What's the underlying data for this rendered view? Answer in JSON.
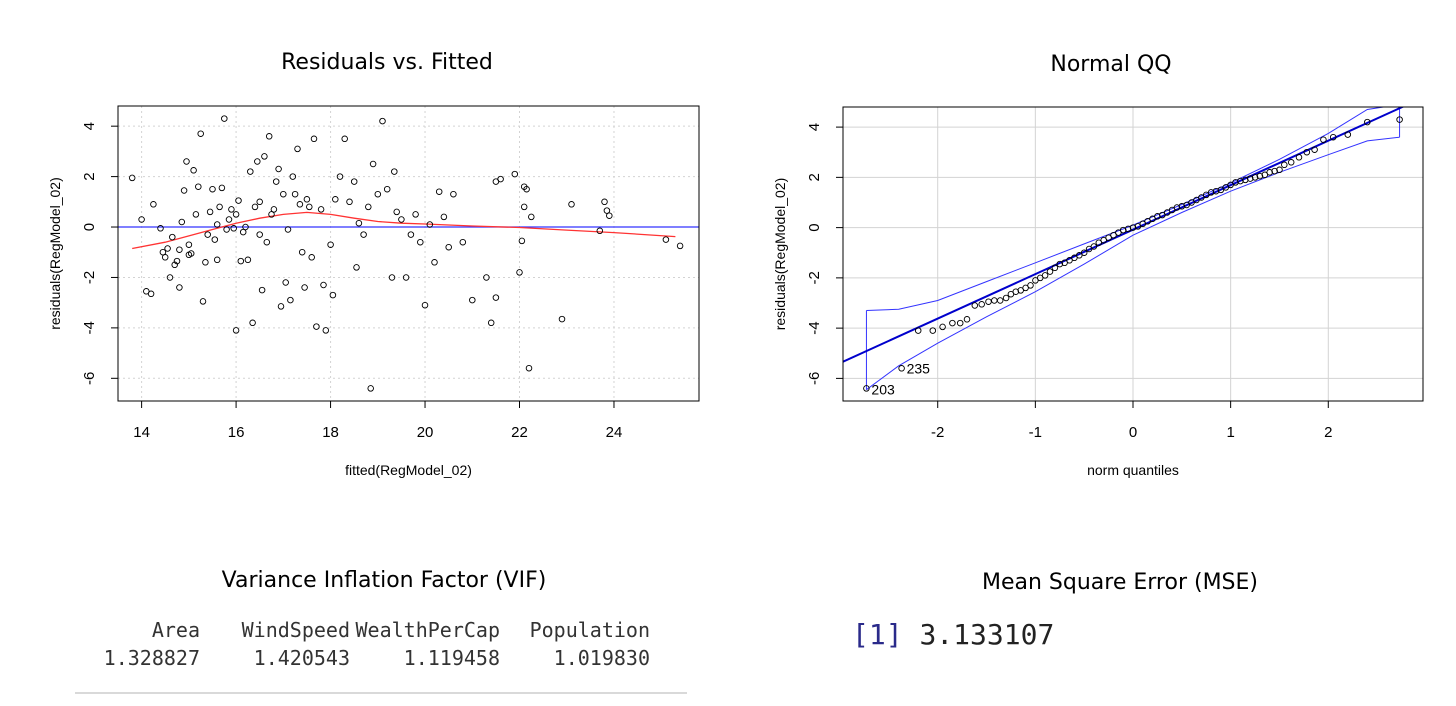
{
  "titles": {
    "residuals_fitted": "Residuals vs. Fitted",
    "normal_qq": "Normal QQ",
    "vif": "Variance Inflation Factor (VIF)",
    "mse": "Mean Square Error (MSE)"
  },
  "chart_data": [
    {
      "type": "scatter",
      "title": "Residuals vs. Fitted",
      "xlabel": "fitted(RegModel_02)",
      "ylabel": "residuals(RegModel_02)",
      "xlim": [
        13.5,
        25.8
      ],
      "ylim": [
        -6.9,
        4.8
      ],
      "xticks": [
        14,
        16,
        18,
        20,
        22,
        24
      ],
      "yticks": [
        -6,
        -4,
        -2,
        0,
        2,
        4
      ],
      "grid": true,
      "reference_line": {
        "y": 0,
        "color": "#3333ff"
      },
      "smooth": {
        "color": "#ff3333",
        "points": [
          [
            13.8,
            -0.85
          ],
          [
            14.5,
            -0.6
          ],
          [
            15.0,
            -0.35
          ],
          [
            15.5,
            -0.1
          ],
          [
            16.0,
            0.15
          ],
          [
            16.5,
            0.35
          ],
          [
            17.0,
            0.5
          ],
          [
            17.5,
            0.58
          ],
          [
            18.0,
            0.5
          ],
          [
            18.5,
            0.35
          ],
          [
            19.0,
            0.22
          ],
          [
            19.5,
            0.15
          ],
          [
            20.0,
            0.12
          ],
          [
            20.5,
            0.08
          ],
          [
            21.0,
            0.04
          ],
          [
            22.0,
            -0.02
          ],
          [
            23.0,
            -0.12
          ],
          [
            24.0,
            -0.22
          ],
          [
            25.3,
            -0.38
          ]
        ]
      },
      "points": [
        [
          13.8,
          1.95
        ],
        [
          14.0,
          0.3
        ],
        [
          14.1,
          -2.55
        ],
        [
          14.2,
          -2.65
        ],
        [
          14.25,
          0.9
        ],
        [
          14.4,
          -0.05
        ],
        [
          14.45,
          -1.0
        ],
        [
          14.5,
          -1.2
        ],
        [
          14.55,
          -0.85
        ],
        [
          14.6,
          -2.0
        ],
        [
          14.65,
          -0.4
        ],
        [
          14.7,
          -1.5
        ],
        [
          14.75,
          -1.35
        ],
        [
          14.8,
          -2.4
        ],
        [
          14.8,
          -0.9
        ],
        [
          14.85,
          0.2
        ],
        [
          14.9,
          1.45
        ],
        [
          14.95,
          2.6
        ],
        [
          15.0,
          -1.1
        ],
        [
          15.0,
          -0.7
        ],
        [
          15.05,
          -1.05
        ],
        [
          15.1,
          2.25
        ],
        [
          15.15,
          0.5
        ],
        [
          15.2,
          1.6
        ],
        [
          15.25,
          3.7
        ],
        [
          15.3,
          -2.95
        ],
        [
          15.35,
          -1.4
        ],
        [
          15.4,
          -0.3
        ],
        [
          15.45,
          0.6
        ],
        [
          15.5,
          1.5
        ],
        [
          15.55,
          -0.5
        ],
        [
          15.6,
          -1.3
        ],
        [
          15.6,
          0.1
        ],
        [
          15.65,
          0.8
        ],
        [
          15.7,
          1.55
        ],
        [
          15.75,
          4.3
        ],
        [
          15.8,
          -0.1
        ],
        [
          15.85,
          0.3
        ],
        [
          15.9,
          0.7
        ],
        [
          15.95,
          -0.05
        ],
        [
          16.0,
          -4.1
        ],
        [
          16.0,
          0.5
        ],
        [
          16.05,
          1.05
        ],
        [
          16.1,
          -1.35
        ],
        [
          16.15,
          -0.2
        ],
        [
          16.2,
          0.0
        ],
        [
          16.25,
          -1.3
        ],
        [
          16.3,
          2.2
        ],
        [
          16.35,
          -3.8
        ],
        [
          16.4,
          0.8
        ],
        [
          16.45,
          2.6
        ],
        [
          16.5,
          -0.3
        ],
        [
          16.5,
          1.0
        ],
        [
          16.55,
          -2.5
        ],
        [
          16.6,
          2.8
        ],
        [
          16.65,
          -0.6
        ],
        [
          16.7,
          3.6
        ],
        [
          16.75,
          0.5
        ],
        [
          16.8,
          0.7
        ],
        [
          16.85,
          1.8
        ],
        [
          16.9,
          2.3
        ],
        [
          16.95,
          -3.15
        ],
        [
          17.0,
          1.3
        ],
        [
          17.05,
          -2.2
        ],
        [
          17.1,
          -0.1
        ],
        [
          17.15,
          -2.9
        ],
        [
          17.2,
          2.0
        ],
        [
          17.25,
          1.3
        ],
        [
          17.3,
          3.1
        ],
        [
          17.35,
          0.9
        ],
        [
          17.4,
          -1.0
        ],
        [
          17.45,
          -2.4
        ],
        [
          17.5,
          1.1
        ],
        [
          17.55,
          0.8
        ],
        [
          17.6,
          -1.2
        ],
        [
          17.65,
          3.5
        ],
        [
          17.7,
          -3.95
        ],
        [
          17.8,
          0.7
        ],
        [
          17.85,
          -2.3
        ],
        [
          17.9,
          -4.1
        ],
        [
          18.0,
          -0.7
        ],
        [
          18.05,
          -2.7
        ],
        [
          18.1,
          1.1
        ],
        [
          18.2,
          2.0
        ],
        [
          18.3,
          3.5
        ],
        [
          18.4,
          1.0
        ],
        [
          18.5,
          1.8
        ],
        [
          18.55,
          -1.6
        ],
        [
          18.6,
          0.15
        ],
        [
          18.7,
          -0.3
        ],
        [
          18.8,
          0.8
        ],
        [
          18.85,
          -6.4
        ],
        [
          18.9,
          2.5
        ],
        [
          19.0,
          1.3
        ],
        [
          19.1,
          4.2
        ],
        [
          19.2,
          1.5
        ],
        [
          19.3,
          -2.0
        ],
        [
          19.35,
          2.2
        ],
        [
          19.4,
          0.6
        ],
        [
          19.5,
          0.3
        ],
        [
          19.6,
          -2.0
        ],
        [
          19.7,
          -0.3
        ],
        [
          19.8,
          0.5
        ],
        [
          19.9,
          -0.6
        ],
        [
          20.0,
          -3.1
        ],
        [
          20.1,
          0.1
        ],
        [
          20.2,
          -1.4
        ],
        [
          20.3,
          1.4
        ],
        [
          20.4,
          0.4
        ],
        [
          20.5,
          -0.8
        ],
        [
          20.6,
          1.3
        ],
        [
          20.8,
          -0.6
        ],
        [
          21.0,
          -2.9
        ],
        [
          21.3,
          -2.0
        ],
        [
          21.4,
          -3.8
        ],
        [
          21.5,
          -2.8
        ],
        [
          21.5,
          1.8
        ],
        [
          21.6,
          1.9
        ],
        [
          21.9,
          2.1
        ],
        [
          22.0,
          -1.8
        ],
        [
          22.05,
          -0.55
        ],
        [
          22.1,
          1.6
        ],
        [
          22.15,
          1.5
        ],
        [
          22.2,
          -5.6
        ],
        [
          22.25,
          0.4
        ],
        [
          22.9,
          -3.65
        ],
        [
          22.1,
          0.8
        ],
        [
          23.1,
          0.9
        ],
        [
          23.7,
          -0.15
        ],
        [
          23.8,
          1.0
        ],
        [
          23.85,
          0.65
        ],
        [
          23.9,
          0.45
        ],
        [
          25.1,
          -0.5
        ],
        [
          25.4,
          -0.75
        ]
      ]
    },
    {
      "type": "scatter",
      "title": "Normal QQ",
      "xlabel": "norm quantiles",
      "ylabel": "residuals(RegModel_02)",
      "xlim": [
        -2.97,
        2.97
      ],
      "ylim": [
        -6.9,
        4.8
      ],
      "xticks": [
        -2,
        -1,
        0,
        1,
        2
      ],
      "yticks": [
        -6,
        -4,
        -2,
        0,
        2,
        4
      ],
      "grid": true,
      "labels": [
        {
          "text": "235",
          "x": -2.37,
          "y": -5.6
        },
        {
          "text": "203",
          "x": -2.73,
          "y": -6.45
        }
      ],
      "reference_line": {
        "slope": 1.77,
        "intercept": -0.08,
        "color": "#0000cc"
      },
      "envelope": {
        "upper": [
          [
            -2.73,
            -3.3
          ],
          [
            -2.4,
            -3.25
          ],
          [
            -2.0,
            -2.9
          ],
          [
            -1.5,
            -2.15
          ],
          [
            -1.0,
            -1.4
          ],
          [
            -0.5,
            -0.65
          ],
          [
            0.0,
            0.1
          ],
          [
            0.5,
            0.92
          ],
          [
            1.0,
            1.78
          ],
          [
            1.5,
            2.72
          ],
          [
            2.0,
            3.75
          ],
          [
            2.4,
            4.7
          ],
          [
            2.73,
            4.9
          ]
        ],
        "lower": [
          [
            -2.73,
            -6.45
          ],
          [
            -2.4,
            -5.5
          ],
          [
            -2.0,
            -4.6
          ],
          [
            -1.5,
            -3.55
          ],
          [
            -1.0,
            -2.55
          ],
          [
            -0.5,
            -1.45
          ],
          [
            0.0,
            -0.3
          ],
          [
            0.5,
            0.6
          ],
          [
            1.0,
            1.45
          ],
          [
            1.5,
            2.2
          ],
          [
            2.0,
            2.9
          ],
          [
            2.4,
            3.45
          ],
          [
            2.73,
            3.6
          ]
        ]
      },
      "points": [
        [
          -2.73,
          -6.4
        ],
        [
          -2.37,
          -5.6
        ],
        [
          -2.2,
          -4.1
        ],
        [
          -2.05,
          -4.1
        ],
        [
          -1.95,
          -3.95
        ],
        [
          -1.85,
          -3.8
        ],
        [
          -1.77,
          -3.8
        ],
        [
          -1.7,
          -3.65
        ],
        [
          -1.62,
          -3.1
        ],
        [
          -1.55,
          -3.05
        ],
        [
          -1.48,
          -2.95
        ],
        [
          -1.42,
          -2.9
        ],
        [
          -1.36,
          -2.9
        ],
        [
          -1.3,
          -2.8
        ],
        [
          -1.25,
          -2.65
        ],
        [
          -1.2,
          -2.55
        ],
        [
          -1.15,
          -2.5
        ],
        [
          -1.1,
          -2.4
        ],
        [
          -1.05,
          -2.3
        ],
        [
          -1.0,
          -2.1
        ],
        [
          -0.95,
          -2.0
        ],
        [
          -0.9,
          -1.9
        ],
        [
          -0.85,
          -1.75
        ],
        [
          -0.8,
          -1.6
        ],
        [
          -0.75,
          -1.45
        ],
        [
          -0.7,
          -1.4
        ],
        [
          -0.65,
          -1.3
        ],
        [
          -0.6,
          -1.2
        ],
        [
          -0.55,
          -1.1
        ],
        [
          -0.5,
          -1.0
        ],
        [
          -0.45,
          -0.85
        ],
        [
          -0.4,
          -0.75
        ],
        [
          -0.35,
          -0.6
        ],
        [
          -0.3,
          -0.5
        ],
        [
          -0.25,
          -0.4
        ],
        [
          -0.2,
          -0.3
        ],
        [
          -0.15,
          -0.2
        ],
        [
          -0.1,
          -0.1
        ],
        [
          -0.05,
          -0.05
        ],
        [
          0.0,
          0.0
        ],
        [
          0.05,
          0.05
        ],
        [
          0.1,
          0.15
        ],
        [
          0.15,
          0.25
        ],
        [
          0.2,
          0.35
        ],
        [
          0.25,
          0.45
        ],
        [
          0.3,
          0.5
        ],
        [
          0.35,
          0.6
        ],
        [
          0.4,
          0.7
        ],
        [
          0.45,
          0.8
        ],
        [
          0.5,
          0.85
        ],
        [
          0.55,
          0.9
        ],
        [
          0.6,
          1.0
        ],
        [
          0.65,
          1.1
        ],
        [
          0.7,
          1.2
        ],
        [
          0.75,
          1.3
        ],
        [
          0.8,
          1.4
        ],
        [
          0.85,
          1.45
        ],
        [
          0.9,
          1.5
        ],
        [
          0.95,
          1.6
        ],
        [
          1.0,
          1.7
        ],
        [
          1.05,
          1.8
        ],
        [
          1.1,
          1.85
        ],
        [
          1.15,
          1.9
        ],
        [
          1.2,
          1.95
        ],
        [
          1.25,
          2.0
        ],
        [
          1.3,
          2.05
        ],
        [
          1.35,
          2.1
        ],
        [
          1.4,
          2.2
        ],
        [
          1.45,
          2.25
        ],
        [
          1.5,
          2.3
        ],
        [
          1.55,
          2.5
        ],
        [
          1.62,
          2.6
        ],
        [
          1.7,
          2.8
        ],
        [
          1.78,
          3.0
        ],
        [
          1.86,
          3.1
        ],
        [
          1.95,
          3.5
        ],
        [
          2.05,
          3.6
        ],
        [
          2.2,
          3.7
        ],
        [
          2.4,
          4.2
        ],
        [
          2.73,
          4.3
        ]
      ]
    }
  ],
  "vif": {
    "headers": [
      "Area",
      "WindSpeed",
      "WealthPerCap",
      "Population"
    ],
    "values": [
      "1.328827",
      "1.420543",
      "1.119458",
      "1.019830"
    ]
  },
  "mse": {
    "index": "[1]",
    "value": "3.133107"
  },
  "colors": {
    "points": "#000000",
    "smooth": "#ff3333",
    "zero_line": "#3333ff",
    "qq_line": "#0000cc",
    "envelope": "#3333ff",
    "grid": "#d3d3d3"
  }
}
